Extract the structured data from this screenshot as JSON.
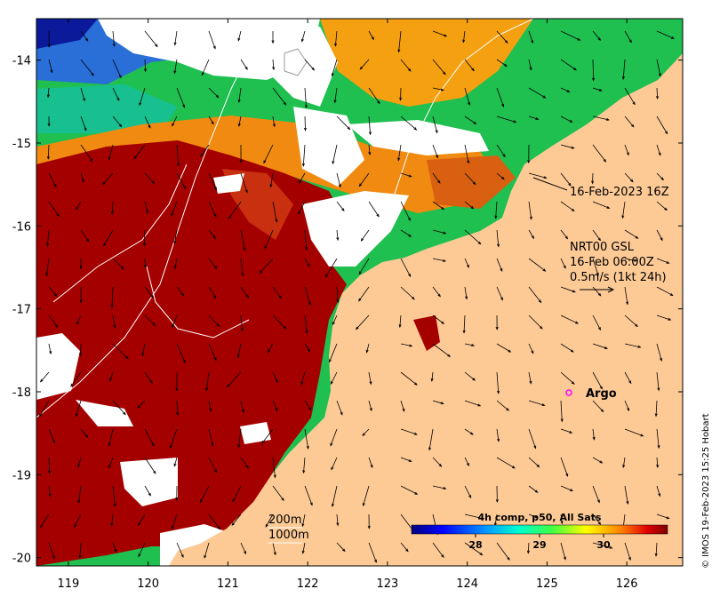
{
  "map": {
    "lon_ticks": [
      "119",
      "120",
      "121",
      "122",
      "123",
      "124",
      "125",
      "126"
    ],
    "lat_ticks": [
      "-14",
      "-15",
      "-16",
      "-17",
      "-18",
      "-19",
      "-20"
    ],
    "lon_range": [
      118.6,
      126.7
    ],
    "lat_range": [
      -20.1,
      -13.5
    ]
  },
  "annotations": {
    "swath_time": "16-Feb-2023 16Z",
    "current_source": "NRT00 GSL",
    "current_time": "16-Feb 06:00Z",
    "current_scale": "0.5m/s (1kt 24h)",
    "argo_label": "Argo",
    "contour_200": "200m",
    "contour_1000": "1000m"
  },
  "colorbar": {
    "title": "4h comp, p50, All Sats",
    "ticks": [
      "28",
      "29",
      "30"
    ],
    "tick_values": [
      28,
      29,
      30
    ],
    "range": [
      27,
      31
    ]
  },
  "credit": "© IMOS 19-Feb-2023 15:25 Hobart",
  "colors": {
    "land": "#fdca96",
    "warm": "#a50000",
    "cloud": "#ffffff",
    "argo": "#ff00ff"
  }
}
